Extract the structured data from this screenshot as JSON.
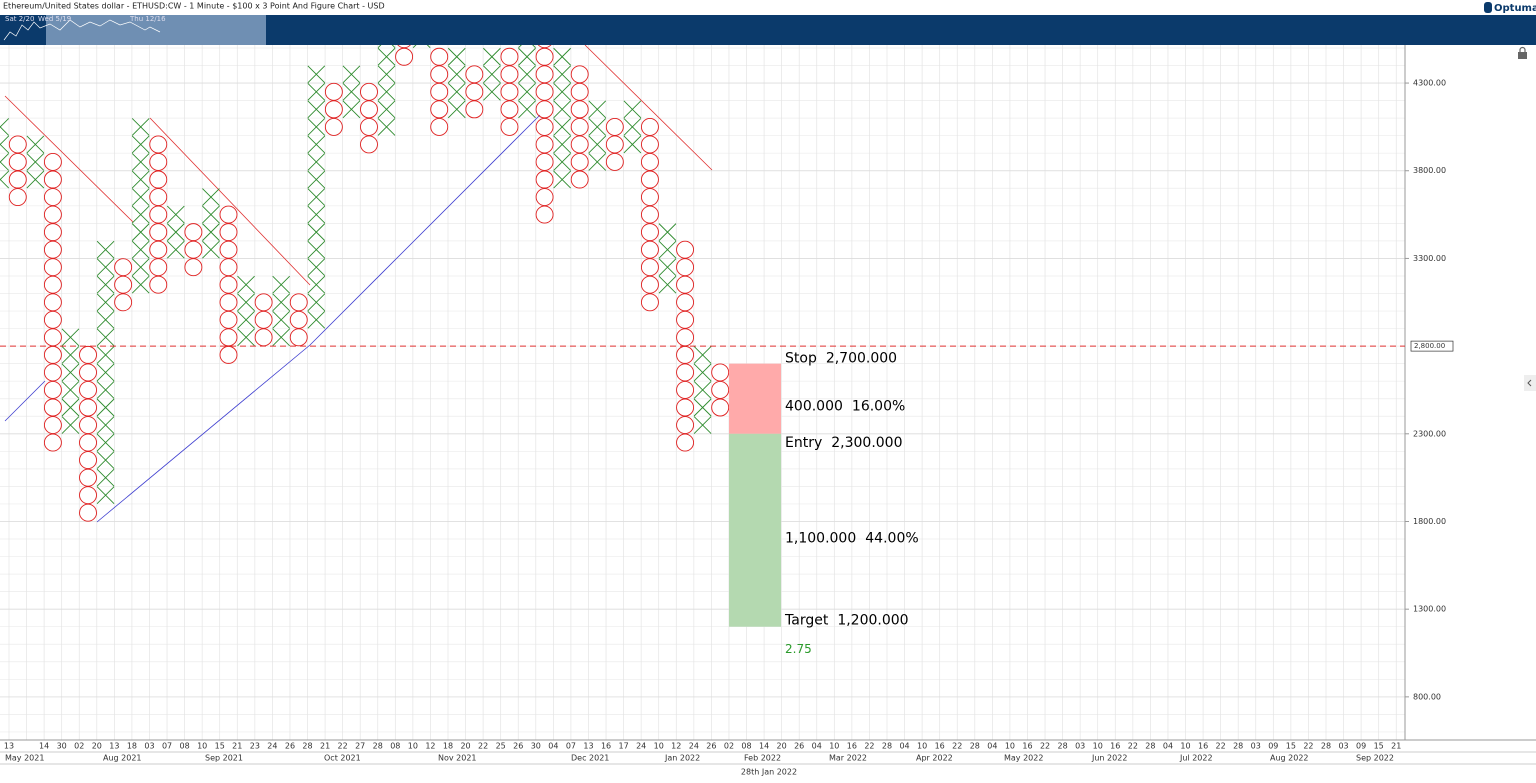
{
  "header": {
    "title": "Ethereum/United States dollar - ETHUSD:CW - 1 Minute - $100 x 3 Point And Figure Chart - USD",
    "logo": "Optuma"
  },
  "navigator": {
    "labels": [
      "Sat 2/20",
      "Wed 5/19",
      "Thu 12/16"
    ]
  },
  "chart_data": {
    "type": "pnf",
    "box_size": 100,
    "ylim": [
      554,
      4517
    ],
    "yticks": [
      {
        "value": 800,
        "label": "800.00"
      },
      {
        "value": 1300,
        "label": "1300.00"
      },
      {
        "value": 1800,
        "label": "1800.00"
      },
      {
        "value": 2300,
        "label": "2300.00"
      },
      {
        "value": 3300,
        "label": "3300.00"
      },
      {
        "value": 3800,
        "label": "3800.00"
      },
      {
        "value": 4300,
        "label": "4300.00"
      }
    ],
    "price_line": {
      "value": 2800,
      "label": "2,800.00",
      "color": "#e03030"
    },
    "x_color": "#2e8b2e",
    "o_color": "#e02020",
    "categories": [
      "13",
      null,
      "14",
      "30",
      "02",
      "20",
      "13",
      "18",
      "03",
      "07",
      "08",
      "10",
      "15",
      "21",
      "23",
      "24",
      "26",
      "28",
      "21",
      "22",
      "27",
      "28",
      "08",
      "10",
      "12",
      "18",
      "20",
      "22",
      "25",
      "26",
      "30",
      "04",
      "07",
      "13",
      "16",
      "17",
      "24",
      "10",
      "12",
      "24",
      "26",
      "02",
      "08",
      "14",
      "20",
      "26",
      "04",
      "10",
      "16",
      "22",
      "28",
      "04",
      "10",
      "16",
      "22",
      "28",
      "04",
      "10",
      "16",
      "22",
      "28",
      "03",
      "10",
      "16",
      "22",
      "28",
      "04",
      "10",
      "16",
      "22",
      "28",
      "03",
      "09",
      "15",
      "22",
      "28",
      "03",
      "09",
      "15",
      "21"
    ],
    "months": [
      "May 2021",
      "Aug 2021",
      "Sep 2021",
      "Oct 2021",
      "Nov 2021",
      "Dec 2021",
      "Jan 2022",
      "Feb 2022",
      "Mar 2022",
      "Apr 2022",
      "May 2022",
      "Jun 2022",
      "Jul 2022",
      "Aug 2022",
      "Sep 2022"
    ],
    "cursor_date": "28th Jan 2022",
    "columns": [
      {
        "kind": "X",
        "low": 3700,
        "high": 4000
      },
      {
        "kind": "O",
        "low": 3600,
        "high": 3900
      },
      {
        "kind": "X",
        "low": 3700,
        "high": 3900
      },
      {
        "kind": "O",
        "low": 2200,
        "high": 3800
      },
      {
        "kind": "X",
        "low": 2300,
        "high": 2800
      },
      {
        "kind": "O",
        "low": 1800,
        "high": 2700
      },
      {
        "kind": "X",
        "low": 1900,
        "high": 3300
      },
      {
        "kind": "O",
        "low": 3000,
        "high": 3200
      },
      {
        "kind": "X",
        "low": 3100,
        "high": 4000
      },
      {
        "kind": "O",
        "low": 3100,
        "high": 3900
      },
      {
        "kind": "X",
        "low": 3300,
        "high": 3500
      },
      {
        "kind": "O",
        "low": 3200,
        "high": 3400
      },
      {
        "kind": "X",
        "low": 3300,
        "high": 3600
      },
      {
        "kind": "O",
        "low": 2700,
        "high": 3500
      },
      {
        "kind": "X",
        "low": 2800,
        "high": 3100
      },
      {
        "kind": "O",
        "low": 2800,
        "high": 3000
      },
      {
        "kind": "X",
        "low": 2800,
        "high": 3100
      },
      {
        "kind": "O",
        "low": 2800,
        "high": 3000
      },
      {
        "kind": "X",
        "low": 2900,
        "high": 4300
      },
      {
        "kind": "O",
        "low": 4000,
        "high": 4200
      },
      {
        "kind": "X",
        "low": 4100,
        "high": 4300
      },
      {
        "kind": "O",
        "low": 3900,
        "high": 4200
      },
      {
        "kind": "X",
        "low": 4000,
        "high": 4500
      },
      {
        "kind": "O",
        "low": 4400,
        "high": 4500
      },
      {
        "kind": "X",
        "low": 4500,
        "high": 4700
      },
      {
        "kind": "O",
        "low": 4000,
        "high": 4400
      },
      {
        "kind": "X",
        "low": 4100,
        "high": 4400
      },
      {
        "kind": "O",
        "low": 4100,
        "high": 4300
      },
      {
        "kind": "X",
        "low": 4200,
        "high": 4400
      },
      {
        "kind": "O",
        "low": 4000,
        "high": 4400
      },
      {
        "kind": "X",
        "low": 4100,
        "high": 4500
      },
      {
        "kind": "O",
        "low": 3500,
        "high": 4500
      },
      {
        "kind": "X",
        "low": 3700,
        "high": 4400
      },
      {
        "kind": "O",
        "low": 3700,
        "high": 4300
      },
      {
        "kind": "X",
        "low": 3800,
        "high": 4100
      },
      {
        "kind": "O",
        "low": 3800,
        "high": 4000
      },
      {
        "kind": "X",
        "low": 3900,
        "high": 4100
      },
      {
        "kind": "O",
        "low": 3000,
        "high": 4000
      },
      {
        "kind": "X",
        "low": 3100,
        "high": 3400
      },
      {
        "kind": "O",
        "low": 2200,
        "high": 3300
      },
      {
        "kind": "X",
        "low": 2300,
        "high": 2700
      },
      {
        "kind": "O",
        "low": 2400,
        "high": 2600
      }
    ],
    "trade": {
      "stop": 2700,
      "stop_text": "Stop",
      "stop_label": "2,700.000",
      "entry": 2300,
      "entry_text": "Entry",
      "entry_label": "2,300.000",
      "target": 1200,
      "target_text": "Target",
      "target_label": "1,200.000",
      "risk_label": "400.000",
      "risk_pct": "16.00%",
      "reward_label": "1,100.000",
      "reward_pct": "44.00%",
      "ratio": "2.75",
      "risk_color": "#ffaaaa",
      "reward_color": "#b4d9b0",
      "ratio_color": "#2a9a2a"
    }
  }
}
